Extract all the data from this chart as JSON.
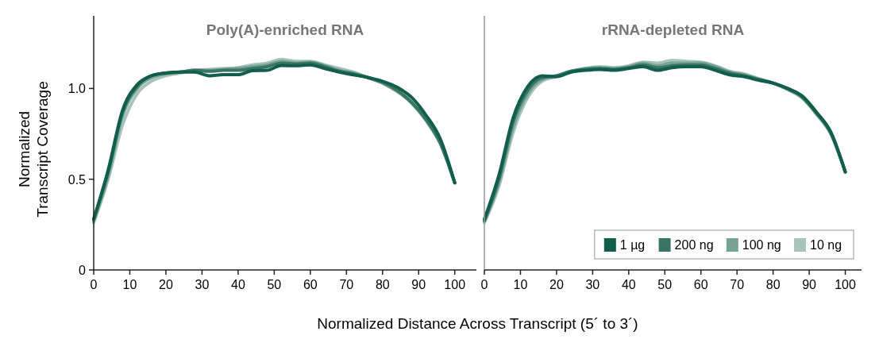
{
  "chart_data": [
    {
      "type": "line",
      "title": "Poly(A)-enriched RNA",
      "ylabel": "Normalized\nTranscript Coverage",
      "xlabel": "Normalized Distance Across Transcript (5´ to 3´)",
      "x": [
        0,
        4,
        8,
        12,
        16,
        20,
        24,
        28,
        32,
        36,
        40,
        44,
        48,
        52,
        56,
        60,
        64,
        68,
        72,
        76,
        80,
        84,
        88,
        92,
        96,
        100
      ],
      "xlim": [
        0,
        106
      ],
      "xticks": [
        0,
        10,
        20,
        30,
        40,
        50,
        60,
        70,
        80,
        90,
        100
      ],
      "ylim": [
        0,
        1.4
      ],
      "yticks": [
        0,
        0.5,
        {
          "value": 1,
          "label": "1.0"
        }
      ],
      "line_style": "solid",
      "grid": false,
      "legend": false,
      "series": [
        {
          "color": "#105e4b",
          "values": [
            0.28,
            0.55,
            0.88,
            1.02,
            1.07,
            1.085,
            1.09,
            1.09,
            1.07,
            1.076,
            1.076,
            1.098,
            1.1,
            1.127,
            1.125,
            1.13,
            1.11,
            1.09,
            1.075,
            1.06,
            1.04,
            1.007,
            0.952,
            0.854,
            0.722,
            0.48
          ]
        },
        {
          "color": "#3a7564",
          "values": [
            0.28,
            0.54,
            0.87,
            1.01,
            1.07,
            1.085,
            1.09,
            1.1,
            1.095,
            1.1,
            1.1,
            1.11,
            1.12,
            1.14,
            1.135,
            1.14,
            1.12,
            1.095,
            1.08,
            1.06,
            1.035,
            0.99,
            0.925,
            0.83,
            0.7,
            0.48
          ]
        },
        {
          "color": "#76a393",
          "values": [
            0.27,
            0.52,
            0.85,
            1.0,
            1.06,
            1.08,
            1.09,
            1.1,
            1.1,
            1.105,
            1.11,
            1.12,
            1.13,
            1.15,
            1.14,
            1.145,
            1.125,
            1.1,
            1.085,
            1.06,
            1.03,
            0.985,
            0.92,
            0.825,
            0.695,
            0.48
          ]
        },
        {
          "color": "#a6c4b9",
          "values": [
            0.26,
            0.5,
            0.8,
            0.97,
            1.04,
            1.07,
            1.085,
            1.1,
            1.105,
            1.11,
            1.115,
            1.13,
            1.14,
            1.16,
            1.15,
            1.15,
            1.13,
            1.11,
            1.09,
            1.06,
            1.03,
            0.985,
            0.925,
            0.83,
            0.7,
            0.48
          ]
        }
      ]
    },
    {
      "type": "line",
      "title": "rRNA-depleted RNA",
      "x": [
        0,
        4,
        8,
        12,
        16,
        20,
        24,
        28,
        32,
        36,
        40,
        44,
        48,
        52,
        56,
        60,
        64,
        68,
        72,
        76,
        80,
        84,
        88,
        92,
        96,
        100
      ],
      "xlim": [
        0,
        104.5
      ],
      "xticks": [
        0,
        10,
        20,
        30,
        40,
        50,
        60,
        70,
        80,
        90,
        100
      ],
      "ylim": [
        0,
        1.4
      ],
      "tick_labels": "x",
      "line_style": "solid",
      "grid": false,
      "legend": "bottom right",
      "series": [
        {
          "name": "1 µg",
          "color": "#105e4b",
          "values": [
            0.28,
            0.52,
            0.84,
            1.01,
            1.07,
            1.065,
            1.09,
            1.1,
            1.105,
            1.1,
            1.11,
            1.12,
            1.1,
            1.115,
            1.12,
            1.12,
            1.1,
            1.075,
            1.065,
            1.045,
            1.03,
            1.0,
            0.96,
            0.87,
            0.76,
            0.54
          ]
        },
        {
          "name": "200 ng",
          "color": "#3a7564",
          "values": [
            0.27,
            0.5,
            0.82,
            0.99,
            1.06,
            1.07,
            1.095,
            1.105,
            1.11,
            1.105,
            1.115,
            1.13,
            1.115,
            1.125,
            1.13,
            1.13,
            1.11,
            1.085,
            1.07,
            1.05,
            1.03,
            1.0,
            0.955,
            0.865,
            0.755,
            0.54
          ]
        },
        {
          "name": "100 ng",
          "color": "#76a393",
          "values": [
            0.27,
            0.48,
            0.79,
            0.97,
            1.05,
            1.07,
            1.095,
            1.11,
            1.115,
            1.11,
            1.12,
            1.14,
            1.125,
            1.14,
            1.14,
            1.14,
            1.12,
            1.09,
            1.075,
            1.05,
            1.03,
            0.995,
            0.95,
            0.86,
            0.75,
            0.54
          ]
        },
        {
          "name": "10 ng",
          "color": "#a6c4b9",
          "values": [
            0.26,
            0.46,
            0.76,
            0.95,
            1.04,
            1.065,
            1.09,
            1.11,
            1.12,
            1.115,
            1.125,
            1.145,
            1.14,
            1.155,
            1.15,
            1.145,
            1.125,
            1.095,
            1.08,
            1.055,
            1.03,
            0.995,
            0.95,
            0.86,
            0.75,
            0.54
          ]
        }
      ]
    }
  ]
}
